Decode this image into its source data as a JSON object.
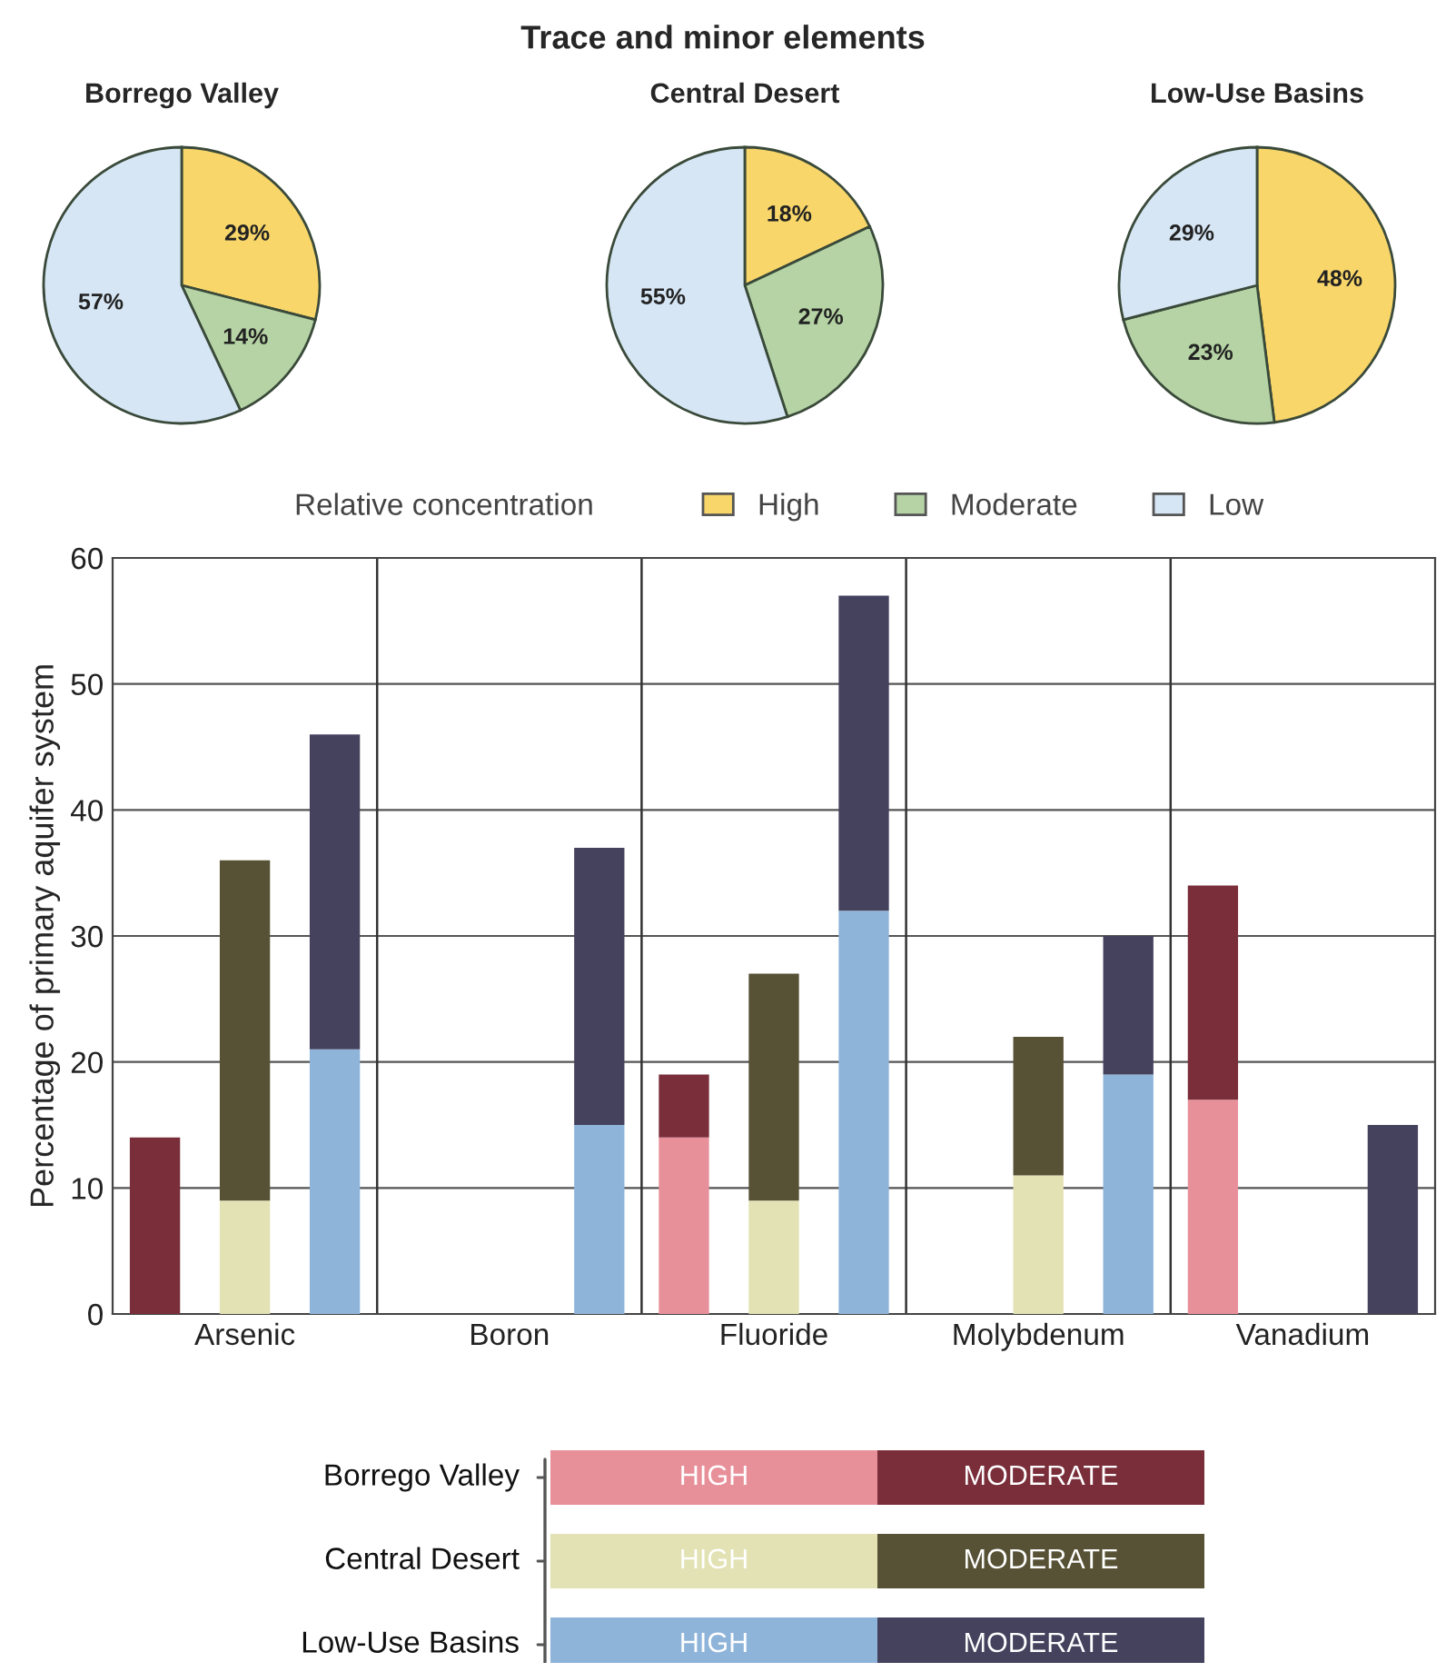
{
  "chart_data": [
    {
      "type": "pie",
      "title": "Borrego Valley",
      "annotations": [
        "Trace and minor elements"
      ],
      "legend_title": "Relative concentration",
      "legend": "bottom",
      "categories": [
        "High",
        "Moderate",
        "Low"
      ],
      "values": [
        29,
        14,
        57
      ],
      "value_labels": [
        "29%",
        "14%",
        "57%"
      ],
      "colors": [
        "#f8d66a",
        "#b5d3a4",
        "#d6e6f4"
      ]
    },
    {
      "type": "pie",
      "title": "Central Desert",
      "values": [
        18,
        27,
        55
      ],
      "value_labels": [
        "18%",
        "27%",
        "55%"
      ],
      "colors": [
        "#f8d66a",
        "#b5d3a4",
        "#d6e6f4"
      ]
    },
    {
      "type": "pie",
      "title": "Low-Use Basins",
      "values": [
        48,
        23,
        29
      ],
      "value_labels": [
        "48%",
        "23%",
        "29%"
      ],
      "colors": [
        "#f8d66a",
        "#b5d3a4",
        "#d6e6f4"
      ]
    },
    {
      "type": "bar",
      "stacked": true,
      "ylabel": "Percentage of primary aquifer system",
      "categories": [
        "Arsenic",
        "Boron",
        "Fluoride",
        "Molybdenum",
        "Vanadium"
      ],
      "ylim": [
        0,
        60
      ],
      "yticks": [
        0,
        10,
        20,
        30,
        40,
        50,
        60
      ],
      "grid": true,
      "legend": "bottom",
      "legend_title": "Borrego Valley",
      "series": [
        {
          "name": "HIGH",
          "color": "#e8909a",
          "values": [
            null,
            null,
            14,
            null,
            17
          ]
        },
        {
          "name": "MODERATE",
          "color": "#7a2e3a",
          "values": [
            14,
            null,
            5,
            null,
            17
          ]
        }
      ]
    },
    {
      "type": "bar",
      "stacked": true,
      "ylim": [
        0,
        60
      ],
      "yticks": [
        0,
        10,
        20,
        30,
        40,
        50,
        60
      ],
      "tick_labels": false,
      "legend": "bottom",
      "legend_title": "Central Desert",
      "series": [
        {
          "name": "HIGH",
          "color": "#e2e2b4",
          "values": [
            9,
            null,
            9,
            11,
            null
          ]
        },
        {
          "name": "MODERATE",
          "color": "#575235",
          "values": [
            27,
            null,
            18,
            11,
            null
          ]
        }
      ]
    },
    {
      "type": "bar",
      "stacked": true,
      "ylim": [
        0,
        60
      ],
      "yticks": [
        0,
        10,
        20,
        30,
        40,
        50,
        60
      ],
      "tick_labels": false,
      "legend": "bottom",
      "legend_title": "Low-Use Basins",
      "series": [
        {
          "name": "HIGH",
          "color": "#8fb4da",
          "values": [
            21,
            15,
            32,
            19,
            null
          ]
        },
        {
          "name": "MODERATE",
          "color": "#45425e",
          "values": [
            25,
            22,
            25,
            11,
            15
          ]
        }
      ]
    }
  ]
}
